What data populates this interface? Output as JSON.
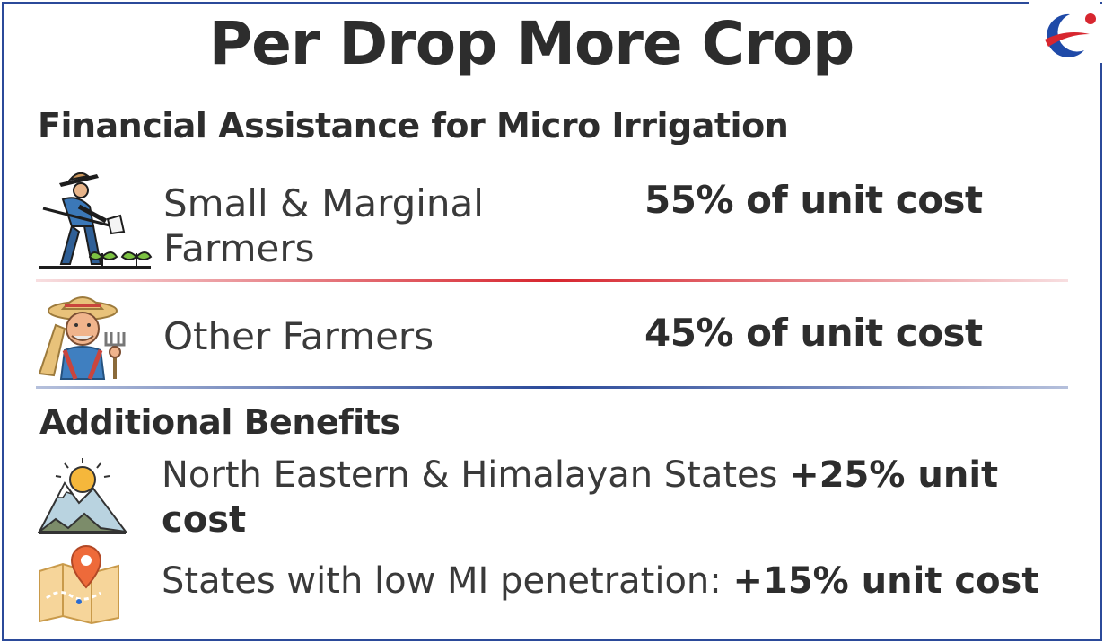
{
  "title": "Per Drop More Crop",
  "financial": {
    "heading": "Financial Assistance for Micro Irrigation",
    "rows": [
      {
        "icon": "farmer-hoeing-icon",
        "label_line1": "Small & Marginal",
        "label_line2": "Farmers",
        "value": "55% of unit cost"
      },
      {
        "icon": "old-farmer-icon",
        "label_line1": "Other Farmers",
        "value": "45% of unit cost"
      }
    ]
  },
  "additional": {
    "heading": "Additional Benefits",
    "items": [
      {
        "icon": "mountain-sun-icon",
        "text": "North Eastern & Himalayan States ",
        "bold": "+25% unit cost"
      },
      {
        "icon": "map-pin-icon",
        "text": "States with low MI penetration: ",
        "bold": "+15% unit cost"
      }
    ]
  },
  "colors": {
    "text": "#2d2d2d",
    "border": "#2b4a9a",
    "red_divider": "#d7262f",
    "blue_divider": "#2b4a9a"
  }
}
